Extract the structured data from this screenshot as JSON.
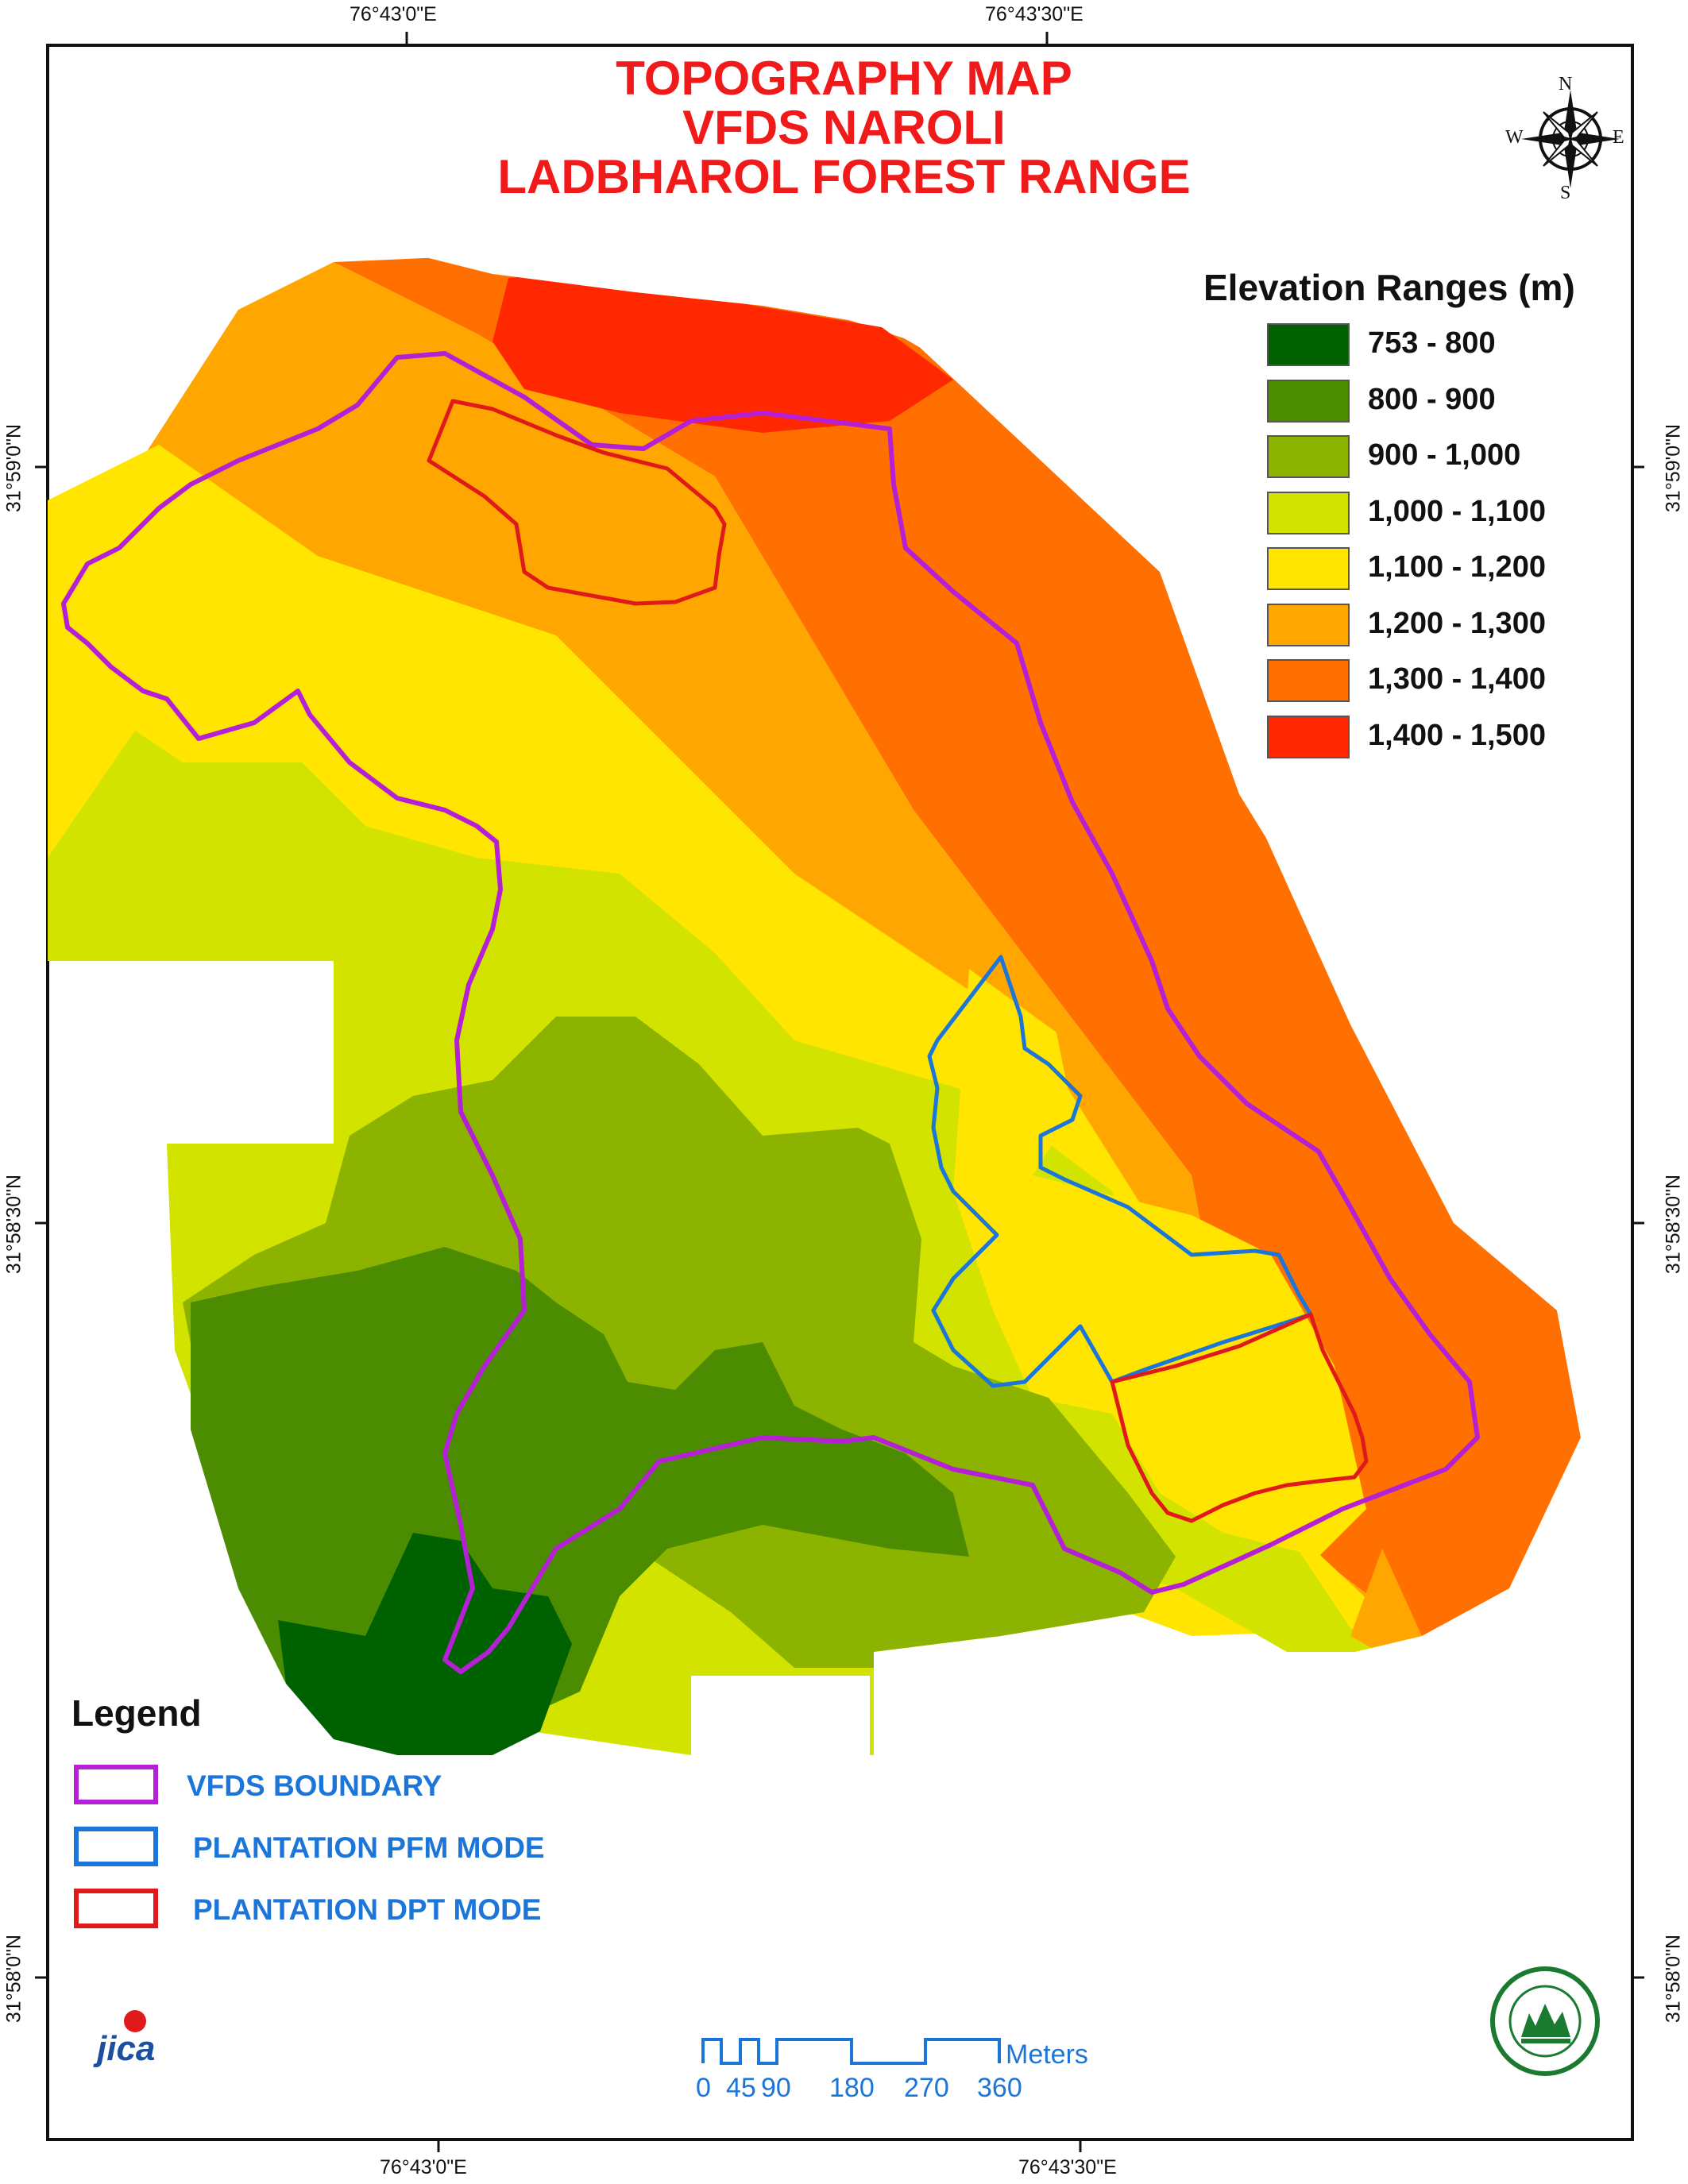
{
  "title": {
    "line1": "TOPOGRAPHY MAP",
    "line2": "VFDS NAROLI",
    "line3": "LADBHAROL FOREST RANGE"
  },
  "coordinates": {
    "top_left": "76°43'0\"E",
    "top_right": "76°43'30\"E",
    "bottom_left": "76°43'0\"E",
    "bottom_right": "76°43'30\"E",
    "left_upper": "31°59'0\"N",
    "left_middle": "31°58'30\"N",
    "left_lower": "31°58'0\"N",
    "right_upper": "31°59'0\"N",
    "right_middle": "31°58'30\"N",
    "right_lower": "31°58'0\"N"
  },
  "compass": {
    "n": "N",
    "s": "S",
    "e": "E",
    "w": "W"
  },
  "elevation_legend": {
    "title": "Elevation Ranges (m)",
    "items": [
      {
        "label": "753 - 800",
        "color": "#006100"
      },
      {
        "label": "800 - 900",
        "color": "#4c8c00"
      },
      {
        "label": "900 - 1,000",
        "color": "#8cb300"
      },
      {
        "label": "1,000 - 1,100",
        "color": "#d3e300"
      },
      {
        "label": "1,100 - 1,200",
        "color": "#ffe500"
      },
      {
        "label": "1,200 - 1,300",
        "color": "#ffa600"
      },
      {
        "label": "1,300 - 1,400",
        "color": "#ff7000"
      },
      {
        "label": "1,400 - 1,500",
        "color": "#ff2800"
      }
    ]
  },
  "legend": {
    "title": "Legend",
    "items": [
      {
        "label": "VFDS BOUNDARY",
        "color": "#b51fd6"
      },
      {
        "label": "PLANTATION PFM MODE",
        "color": "#1c75d8"
      },
      {
        "label": "PLANTATION DPT MODE",
        "color": "#e01a1a"
      }
    ]
  },
  "scale_bar": {
    "unit": "Meters",
    "ticks": [
      "0",
      "45",
      "90",
      "180",
      "270",
      "360"
    ]
  },
  "logos": {
    "jica": "jica"
  }
}
